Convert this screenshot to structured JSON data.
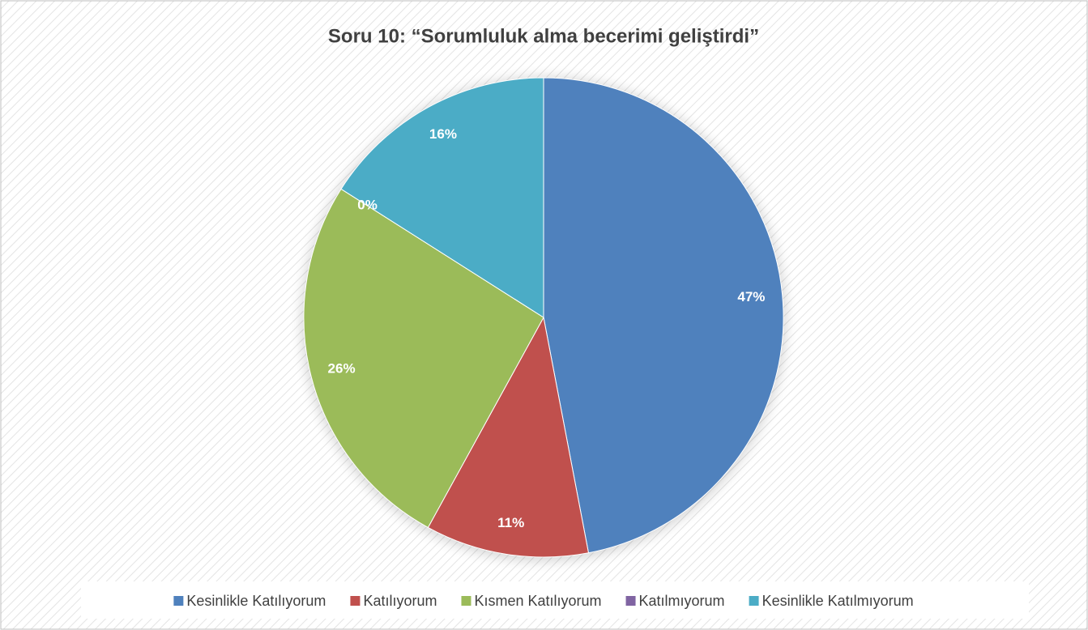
{
  "chart_data": {
    "type": "pie",
    "title": "Soru 10: “Sorumluluk alma becerimi geliştirdi”",
    "categories": [
      "Kesinlikle Katılıyorum",
      "Katılıyorum",
      "Kısmen Katılıyorum",
      "Katılmıyorum",
      "Kesinlikle Katılmıyorum"
    ],
    "values": [
      47,
      11,
      26,
      0,
      16
    ],
    "value_labels": [
      "47%",
      "11%",
      "26%",
      "0%",
      "16%"
    ],
    "colors": [
      "#4f81bd",
      "#c0504d",
      "#9bbb59",
      "#8064a2",
      "#4bacc6"
    ],
    "legend": "bottom"
  }
}
